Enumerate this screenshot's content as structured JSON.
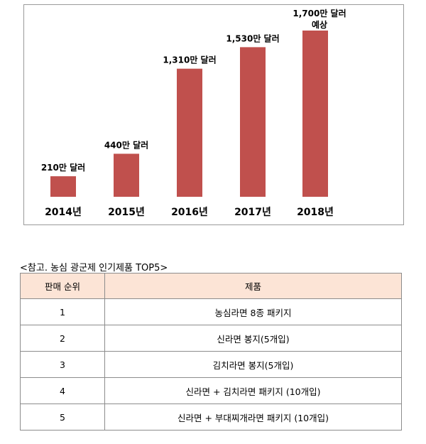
{
  "chart_data": {
    "type": "bar",
    "categories": [
      "2014년",
      "2015년",
      "2016년",
      "2017년",
      "2018년"
    ],
    "values": [
      210,
      440,
      1310,
      1530,
      1700
    ],
    "labels": [
      "210만 달러",
      "440만 달러",
      "1,310만 달러",
      "1,530만 달러",
      "1,700만 달러\n예상"
    ],
    "unit": "만 달러",
    "ylim": [
      0,
      1700
    ],
    "bar_color": "#c0504d",
    "grid": false,
    "legend": false
  },
  "table": {
    "caption": "<참고. 농심 광군제 인기제품 TOP5>",
    "header": [
      "판매 순위",
      "제품"
    ],
    "rows": [
      [
        "1",
        "농심라면 8종 패키지"
      ],
      [
        "2",
        "신라면 봉지(5개입)"
      ],
      [
        "3",
        "김치라면 봉지(5개입)"
      ],
      [
        "4",
        "신라면 + 김치라면 패키지 (10개입)"
      ],
      [
        "5",
        "신라면 + 부대찌개라면 패키지 (10개입)"
      ]
    ],
    "header_color": "#fce4d6"
  }
}
